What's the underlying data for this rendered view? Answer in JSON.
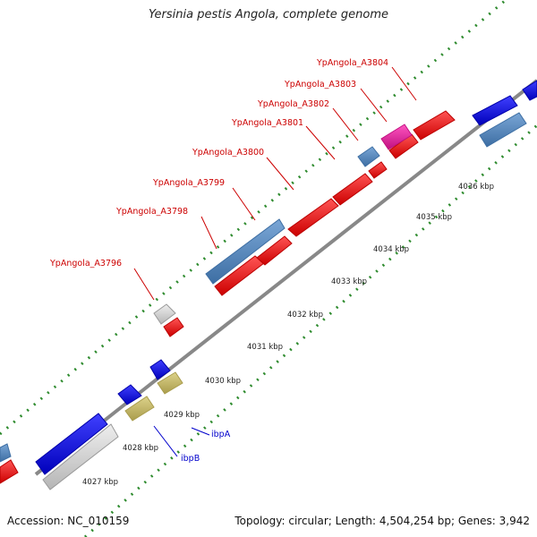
{
  "title": "Yersinia pestis Angola, complete genome",
  "footer": {
    "accession": "Accession: NC_010159",
    "topology": "Topology: circular; Length: 4,504,254 bp; Genes: 3,942"
  },
  "colors": {
    "background": "#ffffff",
    "backbone": "#888888",
    "tick_minor": "#2e8b2e",
    "tick_major": "#2e8b2e",
    "red_feature": "#ee0000",
    "blue_feature": "#0000ee",
    "steelblue_feature": "#4f82b8",
    "gray_feature": "#cfcfcf",
    "khaki_feature": "#c4b86a",
    "magenta_feature": "#e0209a",
    "label_red": "#cc0000",
    "label_blue": "#0000cc"
  },
  "scale_labels": [
    "4027 kbp",
    "4028 kbp",
    "4029 kbp",
    "4030 kbp",
    "4031 kbp",
    "4032 kbp",
    "4033 kbp",
    "4034 kbp",
    "4035 kbp",
    "4036 kbp"
  ],
  "gene_labels": [
    {
      "text": "YpAngola_A3796",
      "color": "red"
    },
    {
      "text": "YpAngola_A3798",
      "color": "red"
    },
    {
      "text": "YpAngola_A3799",
      "color": "red"
    },
    {
      "text": "YpAngola_A3800",
      "color": "red"
    },
    {
      "text": "YpAngola_A3801",
      "color": "red"
    },
    {
      "text": "YpAngola_A3802",
      "color": "red"
    },
    {
      "text": "YpAngola_A3803",
      "color": "red"
    },
    {
      "text": "YpAngola_A3804",
      "color": "red"
    },
    {
      "text": "ibpA",
      "color": "blue"
    },
    {
      "text": "ibpB",
      "color": "blue"
    }
  ]
}
